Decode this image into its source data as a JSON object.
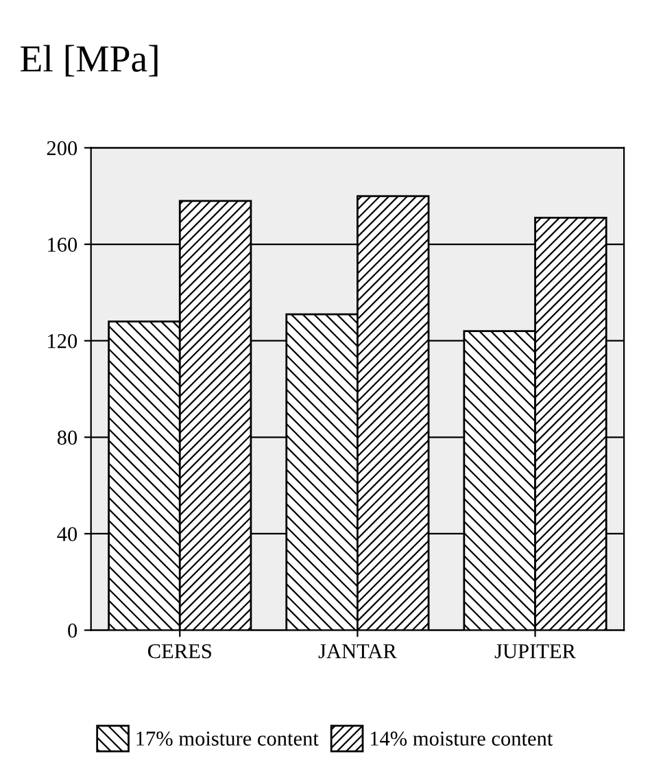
{
  "chart_data": {
    "type": "bar",
    "ylabel": "El [MPa]",
    "categories": [
      "CERES",
      "JANTAR",
      "JUPITER"
    ],
    "series": [
      {
        "name": "17% moisture content",
        "color": "#000000",
        "values": [
          128,
          131,
          124
        ]
      },
      {
        "name": "14% moisture content",
        "color": "#000000",
        "values": [
          178,
          180,
          171
        ]
      }
    ],
    "ylim": [
      0,
      200
    ],
    "yticks": [
      0,
      40,
      80,
      120,
      160,
      200
    ],
    "grid": "y",
    "legend": "bottom"
  }
}
